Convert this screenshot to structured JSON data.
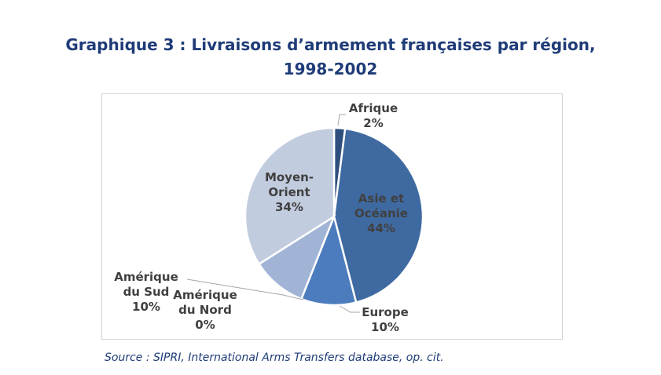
{
  "title_line1": "Graphique 3 : Livraisons d’armement françaises par région,",
  "title_line2": "1998-2002",
  "source": "Source : SIPRI, International Arms Transfers database, op. cit.",
  "chart_data": {
    "type": "pie",
    "title": "Graphique 3 : Livraisons d’armement françaises par région, 1998-2002",
    "slices": [
      {
        "label_lines": [
          "Afrique"
        ],
        "value": 2,
        "pct_text": "2%",
        "color": "#2e4f7e"
      },
      {
        "label_lines": [
          "Asie et",
          "Océanie"
        ],
        "value": 44,
        "pct_text": "44%",
        "color": "#3f6aa1"
      },
      {
        "label_lines": [
          "Europe"
        ],
        "value": 10,
        "pct_text": "10%",
        "color": "#4c7cbd"
      },
      {
        "label_lines": [
          "Amérique",
          "du Nord"
        ],
        "value": 0,
        "pct_text": "0%",
        "color": "#7f9fcb"
      },
      {
        "label_lines": [
          "Amérique",
          "du Sud"
        ],
        "value": 10,
        "pct_text": "10%",
        "color": "#a1b4d6"
      },
      {
        "label_lines": [
          "Moyen-",
          "Orient"
        ],
        "value": 34,
        "pct_text": "34%",
        "color": "#c2ccdf"
      }
    ]
  }
}
